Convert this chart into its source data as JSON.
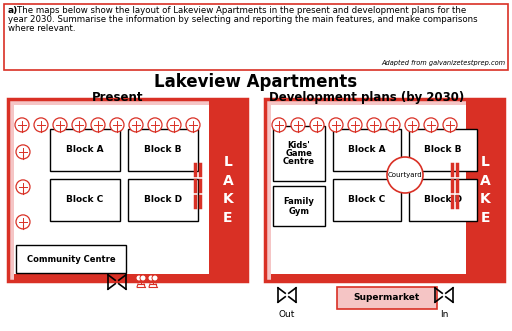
{
  "bg_color": "#ffffff",
  "red": "#d93025",
  "light_red": "#f5c5c5",
  "black": "#000000",
  "header_bold": "a)",
  "header_text": " The maps below show the layout of Lakeview Apartments in the present and development plans for the\nyear 2030. Summarise the information by selecting and reporting the main features, and make comparisons\nwhere relevant.",
  "adapted_text": "Adapted from galvanizetestprep.com",
  "title": "Lakeview Apartments",
  "left_subtitle": "Present",
  "right_subtitle": "Development plans (by 2030)"
}
